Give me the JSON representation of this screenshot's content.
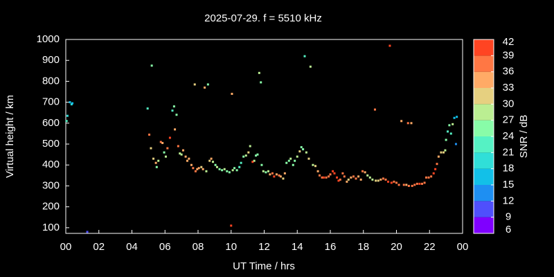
{
  "chart_data": {
    "type": "scatter",
    "title": "2025-07-29. f = 5510 kHz",
    "xlabel": "UT Time / hrs",
    "ylabel": "Virtual height / km",
    "colorbar_label": "SNR / dB",
    "xlim": [
      0,
      24
    ],
    "ylim": [
      73,
      1000
    ],
    "xticks": [
      {
        "value": 0,
        "label": "00"
      },
      {
        "value": 2,
        "label": "02"
      },
      {
        "value": 4,
        "label": "04"
      },
      {
        "value": 6,
        "label": "06"
      },
      {
        "value": 8,
        "label": "08"
      },
      10,
      12,
      14,
      16,
      18,
      20,
      22,
      {
        "value": 24,
        "label": "00"
      }
    ],
    "yticks": [
      100,
      200,
      300,
      400,
      500,
      600,
      700,
      800,
      900,
      1000
    ],
    "clim": [
      6,
      42
    ],
    "cticks": [
      6,
      9,
      12,
      15,
      18,
      21,
      24,
      27,
      30,
      33,
      36,
      39,
      42
    ],
    "colors": [
      "#7f00ff",
      "#4f4ffc",
      "#1e8ff2",
      "#12c0e8",
      "#30dfd8",
      "#55f2c4",
      "#88fca8",
      "#bbee92",
      "#e6d080",
      "#ffaa66",
      "#ff7744",
      "#ff4422"
    ],
    "x": [
      0.05,
      0.1,
      0.25,
      0.35,
      0.4,
      1.3,
      4.95,
      5.05,
      5.15,
      5.2,
      5.3,
      5.45,
      5.5,
      5.6,
      5.75,
      5.85,
      5.95,
      6.05,
      6.15,
      6.3,
      6.45,
      6.55,
      6.7,
      6.6,
      6.8,
      6.9,
      7.0,
      7.1,
      7.25,
      7.35,
      7.45,
      7.6,
      7.7,
      7.8,
      7.85,
      7.95,
      8.05,
      8.2,
      8.3,
      8.4,
      8.5,
      8.6,
      8.7,
      8.8,
      8.9,
      9.05,
      9.15,
      9.3,
      9.45,
      9.6,
      9.75,
      9.9,
      10.0,
      10.05,
      10.1,
      10.2,
      10.35,
      10.5,
      10.6,
      10.75,
      10.9,
      11.05,
      11.15,
      11.3,
      11.4,
      11.5,
      11.6,
      11.7,
      11.8,
      11.85,
      11.95,
      12.1,
      12.25,
      12.35,
      12.5,
      12.6,
      12.75,
      12.9,
      13.0,
      13.15,
      13.25,
      13.35,
      13.5,
      13.6,
      13.75,
      13.85,
      14.0,
      14.15,
      14.25,
      14.35,
      14.45,
      14.55,
      14.7,
      14.8,
      14.95,
      15.1,
      15.25,
      15.35,
      15.5,
      15.6,
      15.75,
      15.9,
      16.0,
      16.15,
      16.25,
      16.4,
      16.5,
      16.6,
      16.75,
      16.85,
      17.0,
      17.1,
      17.25,
      17.4,
      17.55,
      17.7,
      17.85,
      17.95,
      18.1,
      18.25,
      18.4,
      18.55,
      18.7,
      18.75,
      18.9,
      19.05,
      19.2,
      19.35,
      19.5,
      19.6,
      19.7,
      19.85,
      20.0,
      20.15,
      20.3,
      20.45,
      20.6,
      20.7,
      20.75,
      20.9,
      20.95,
      21.1,
      21.25,
      21.4,
      21.55,
      21.7,
      21.8,
      21.95,
      22.1,
      22.25,
      22.35,
      22.45,
      22.55,
      22.7,
      22.85,
      22.95,
      23.0,
      23.1,
      23.2,
      23.3,
      23.4,
      23.5,
      23.6,
      23.65
    ],
    "values": [
      610,
      635,
      700,
      690,
      695,
      80,
      670,
      545,
      480,
      875,
      430,
      410,
      390,
      420,
      510,
      505,
      460,
      440,
      480,
      530,
      660,
      680,
      640,
      570,
      490,
      455,
      450,
      470,
      440,
      420,
      430,
      400,
      385,
      785,
      370,
      380,
      385,
      390,
      380,
      770,
      370,
      785,
      420,
      430,
      415,
      400,
      390,
      380,
      375,
      380,
      370,
      365,
      110,
      740,
      375,
      385,
      375,
      390,
      410,
      440,
      445,
      460,
      490,
      415,
      420,
      445,
      450,
      840,
      795,
      400,
      370,
      365,
      370,
      355,
      360,
      345,
      355,
      350,
      345,
      335,
      360,
      410,
      420,
      430,
      400,
      420,
      440,
      465,
      485,
      475,
      920,
      460,
      430,
      870,
      400,
      395,
      370,
      350,
      340,
      340,
      340,
      345,
      355,
      370,
      360,
      340,
      325,
      330,
      360,
      345,
      320,
      330,
      340,
      345,
      335,
      345,
      330,
      370,
      365,
      350,
      340,
      330,
      665,
      325,
      325,
      330,
      335,
      330,
      320,
      970,
      315,
      320,
      315,
      305,
      610,
      305,
      305,
      600,
      300,
      600,
      300,
      305,
      310,
      310,
      310,
      315,
      340,
      340,
      345,
      360,
      380,
      405,
      440,
      460,
      460,
      470,
      520,
      560,
      590,
      550,
      595,
      625,
      500,
      630
    ],
    "snr": [
      21,
      18,
      15,
      18,
      15,
      9,
      21,
      36,
      30,
      24,
      30,
      33,
      24,
      27,
      36,
      33,
      24,
      27,
      36,
      39,
      21,
      24,
      24,
      33,
      36,
      27,
      27,
      33,
      33,
      33,
      33,
      33,
      36,
      30,
      36,
      33,
      33,
      30,
      33,
      33,
      27,
      24,
      30,
      33,
      27,
      24,
      27,
      24,
      24,
      27,
      24,
      24,
      39,
      33,
      27,
      24,
      24,
      21,
      21,
      24,
      27,
      30,
      27,
      39,
      27,
      24,
      24,
      27,
      24,
      24,
      27,
      24,
      27,
      33,
      36,
      39,
      33,
      36,
      33,
      30,
      33,
      24,
      24,
      27,
      24,
      24,
      27,
      30,
      24,
      24,
      21,
      27,
      30,
      27,
      27,
      30,
      33,
      36,
      36,
      39,
      36,
      36,
      36,
      39,
      39,
      39,
      39,
      36,
      36,
      36,
      33,
      30,
      33,
      36,
      36,
      33,
      33,
      36,
      33,
      27,
      27,
      27,
      36,
      30,
      30,
      33,
      36,
      36,
      39,
      42,
      39,
      36,
      36,
      36,
      33,
      36,
      33,
      36,
      36,
      33,
      36,
      36,
      36,
      39,
      36,
      36,
      36,
      36,
      36,
      39,
      39,
      36,
      33,
      30,
      30,
      27,
      24,
      21,
      24,
      21,
      27,
      15,
      12,
      15
    ]
  }
}
